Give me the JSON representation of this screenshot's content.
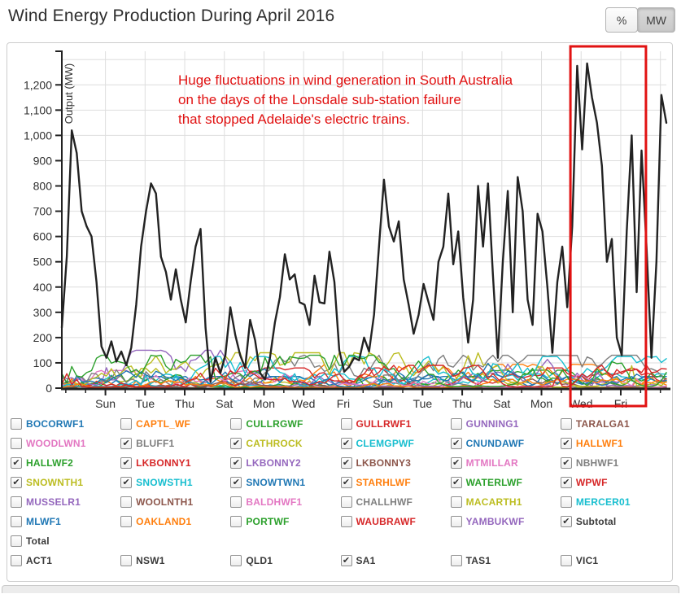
{
  "header": {
    "title": "Wind Energy Production During April 2016",
    "unit_buttons": [
      {
        "label": "%",
        "active": false
      },
      {
        "label": "MW",
        "active": true
      }
    ]
  },
  "chart_data": {
    "type": "line",
    "title": "Wind Energy Production During April 2016",
    "ylabel": "Output (MW)",
    "ylim": [
      0,
      1320
    ],
    "grid": true,
    "y_ticks": [
      {
        "value": 0,
        "label": "0"
      },
      {
        "value": 100,
        "label": "100"
      },
      {
        "value": 200,
        "label": "200"
      },
      {
        "value": 300,
        "label": "300"
      },
      {
        "value": 400,
        "label": "400"
      },
      {
        "value": 500,
        "label": "500"
      },
      {
        "value": 600,
        "label": "600"
      },
      {
        "value": 700,
        "label": "700"
      },
      {
        "value": 800,
        "label": "800"
      },
      {
        "value": 900,
        "label": "900"
      },
      {
        "value": 1000,
        "label": "1,000"
      },
      {
        "value": 1100,
        "label": "1,100"
      },
      {
        "value": 1200,
        "label": "1,200"
      }
    ],
    "x_axis": {
      "span_days": 30.5,
      "first_tick_day": 2.2,
      "major_tick_step_days": 2,
      "minor_tick_step_days": 1,
      "tick_labels": [
        "Sun",
        "Tue",
        "Thu",
        "Sat",
        "Mon",
        "Wed",
        "Fri",
        "Sun",
        "Tue",
        "Thu",
        "Sat",
        "Mon",
        "Wed",
        "Fri"
      ]
    },
    "annotation": {
      "color": "#e11212",
      "text_lines": [
        "Huge fluctuations in wind generation in South Australia",
        "on the days of the Lonsdale sub-station failure",
        "that stopped Adelaide's electric trains."
      ],
      "box": {
        "day_start": 25.66,
        "day_end": 29.47,
        "color": "#e11212"
      }
    },
    "series": [
      {
        "name": "Subtotal",
        "color": "#222222",
        "line_width": 2.4,
        "values": [
          240,
          520,
          1020,
          930,
          700,
          640,
          600,
          420,
          165,
          120,
          185,
          105,
          145,
          90,
          160,
          330,
          560,
          700,
          810,
          770,
          520,
          460,
          350,
          470,
          350,
          260,
          420,
          560,
          630,
          240,
          25,
          120,
          60,
          130,
          320,
          210,
          130,
          80,
          270,
          190,
          60,
          35,
          120,
          260,
          360,
          530,
          430,
          450,
          340,
          330,
          250,
          445,
          340,
          335,
          540,
          420,
          150,
          65,
          85,
          120,
          110,
          200,
          145,
          290,
          560,
          825,
          640,
          580,
          660,
          430,
          330,
          215,
          290,
          412,
          340,
          270,
          500,
          560,
          770,
          490,
          620,
          360,
          180,
          350,
          800,
          560,
          810,
          450,
          120,
          500,
          780,
          300,
          835,
          700,
          350,
          250,
          690,
          620,
          400,
          140,
          420,
          560,
          320,
          640,
          1275,
          945,
          1285,
          1150,
          1050,
          880,
          500,
          590,
          200,
          130,
          620,
          1000,
          380,
          940,
          560,
          120,
          500,
          1160,
          1050
        ]
      }
    ],
    "farm_series": {
      "seed": 11,
      "farms": [
        {
          "name": "BLUFF1",
          "color": "#7f7f7f",
          "peak_mw": 52
        },
        {
          "name": "CATHROCK",
          "color": "#bcbd22",
          "peak_mw": 78
        },
        {
          "name": "CLEMGPWF",
          "color": "#17becf",
          "peak_mw": 56
        },
        {
          "name": "CNUNDAWF",
          "color": "#1f77b4",
          "peak_mw": 46
        },
        {
          "name": "HALLWF1",
          "color": "#ff7f0e",
          "peak_mw": 94
        },
        {
          "name": "HALLWF2",
          "color": "#2ca02c",
          "peak_mw": 71
        },
        {
          "name": "LKBONNY1",
          "color": "#d62728",
          "peak_mw": 80
        },
        {
          "name": "LKBONNY2",
          "color": "#9467bd",
          "peak_mw": 150
        },
        {
          "name": "LKBONNY3",
          "color": "#8c564b",
          "peak_mw": 39
        },
        {
          "name": "MTMILLAR",
          "color": "#e377c2",
          "peak_mw": 70
        },
        {
          "name": "NBHWF1",
          "color": "#7f7f7f",
          "peak_mw": 130
        },
        {
          "name": "SNOWNTH1",
          "color": "#bcbd22",
          "peak_mw": 140
        },
        {
          "name": "SNOWSTH1",
          "color": "#17becf",
          "peak_mw": 125
        },
        {
          "name": "SNOWTWN1",
          "color": "#1f77b4",
          "peak_mw": 98
        },
        {
          "name": "STARHLWF",
          "color": "#ff7f0e",
          "peak_mw": 35
        },
        {
          "name": "WATERLWF",
          "color": "#2ca02c",
          "peak_mw": 130
        },
        {
          "name": "WPWF",
          "color": "#d62728",
          "peak_mw": 90
        }
      ]
    }
  },
  "legend": {
    "farm_items": [
      {
        "label": "BOCORWF1",
        "color": "#1f77b4",
        "checked": false
      },
      {
        "label": "CAPTL_WF",
        "color": "#ff7f0e",
        "checked": false
      },
      {
        "label": "CULLRGWF",
        "color": "#2ca02c",
        "checked": false
      },
      {
        "label": "GULLRWF1",
        "color": "#d62728",
        "checked": false
      },
      {
        "label": "GUNNING1",
        "color": "#9467bd",
        "checked": false
      },
      {
        "label": "TARALGA1",
        "color": "#8c564b",
        "checked": false
      },
      {
        "label": "WOODLWN1",
        "color": "#e377c2",
        "checked": false
      },
      {
        "label": "BLUFF1",
        "color": "#7f7f7f",
        "checked": true
      },
      {
        "label": "CATHROCK",
        "color": "#bcbd22",
        "checked": true
      },
      {
        "label": "CLEMGPWF",
        "color": "#17becf",
        "checked": true
      },
      {
        "label": "CNUNDAWF",
        "color": "#1f77b4",
        "checked": true
      },
      {
        "label": "HALLWF1",
        "color": "#ff7f0e",
        "checked": true
      },
      {
        "label": "HALLWF2",
        "color": "#2ca02c",
        "checked": true
      },
      {
        "label": "LKBONNY1",
        "color": "#d62728",
        "checked": true
      },
      {
        "label": "LKBONNY2",
        "color": "#9467bd",
        "checked": true
      },
      {
        "label": "LKBONNY3",
        "color": "#8c564b",
        "checked": true
      },
      {
        "label": "MTMILLAR",
        "color": "#e377c2",
        "checked": true
      },
      {
        "label": "NBHWF1",
        "color": "#7f7f7f",
        "checked": true
      },
      {
        "label": "SNOWNTH1",
        "color": "#bcbd22",
        "checked": true
      },
      {
        "label": "SNOWSTH1",
        "color": "#17becf",
        "checked": true
      },
      {
        "label": "SNOWTWN1",
        "color": "#1f77b4",
        "checked": true
      },
      {
        "label": "STARHLWF",
        "color": "#ff7f0e",
        "checked": true
      },
      {
        "label": "WATERLWF",
        "color": "#2ca02c",
        "checked": true
      },
      {
        "label": "WPWF",
        "color": "#d62728",
        "checked": true
      },
      {
        "label": "MUSSELR1",
        "color": "#9467bd",
        "checked": false
      },
      {
        "label": "WOOLNTH1",
        "color": "#8c564b",
        "checked": false
      },
      {
        "label": "BALDHWF1",
        "color": "#e377c2",
        "checked": false
      },
      {
        "label": "CHALLHWF",
        "color": "#7f7f7f",
        "checked": false
      },
      {
        "label": "MACARTH1",
        "color": "#bcbd22",
        "checked": false
      },
      {
        "label": "MERCER01",
        "color": "#17becf",
        "checked": false
      },
      {
        "label": "MLWF1",
        "color": "#1f77b4",
        "checked": false
      },
      {
        "label": "OAKLAND1",
        "color": "#ff7f0e",
        "checked": false
      },
      {
        "label": "PORTWF",
        "color": "#2ca02c",
        "checked": false
      },
      {
        "label": "WAUBRAWF",
        "color": "#d62728",
        "checked": false
      },
      {
        "label": "YAMBUKWF",
        "color": "#9467bd",
        "checked": false
      },
      {
        "label": "Subtotal",
        "color": "#3a3a3a",
        "checked": true
      }
    ],
    "total_item": {
      "label": "Total",
      "color": "#3a3a3a",
      "checked": false
    },
    "region_items": [
      {
        "label": "ACT1",
        "color": "#3a3a3a",
        "checked": false
      },
      {
        "label": "NSW1",
        "color": "#3a3a3a",
        "checked": false
      },
      {
        "label": "QLD1",
        "color": "#3a3a3a",
        "checked": false
      },
      {
        "label": "SA1",
        "color": "#3a3a3a",
        "checked": true
      },
      {
        "label": "TAS1",
        "color": "#3a3a3a",
        "checked": false
      },
      {
        "label": "VIC1",
        "color": "#3a3a3a",
        "checked": false
      }
    ]
  }
}
